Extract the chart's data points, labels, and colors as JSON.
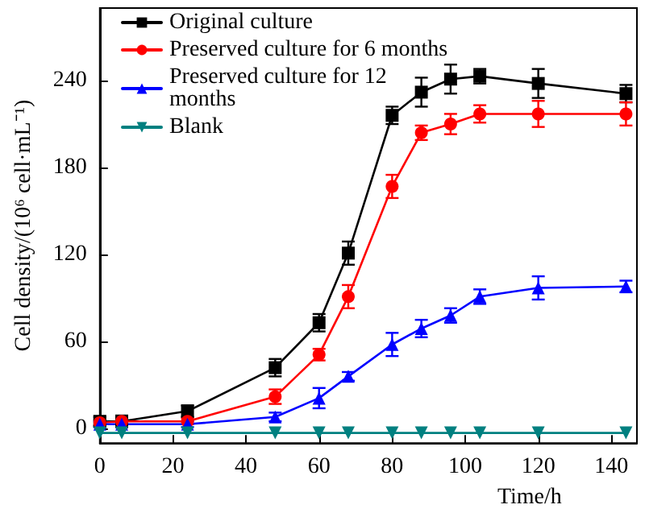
{
  "chart_data": {
    "type": "line",
    "xlabel": "Time/h",
    "ylabel": "Cell density/(10⁶ cell·mL⁻¹)",
    "xlim": [
      0,
      147
    ],
    "xticks": [
      0,
      20,
      40,
      60,
      80,
      100,
      120,
      140
    ],
    "ylim": [
      -10,
      290
    ],
    "yticks": [
      0,
      60,
      120,
      180,
      240
    ],
    "grid": false,
    "legend": "top left",
    "line_style": "solid",
    "series": [
      {
        "name": "Original culture",
        "color": "#000000",
        "marker": "square",
        "x": [
          0,
          6,
          24,
          48,
          60,
          68,
          80,
          88,
          96,
          104,
          120,
          144
        ],
        "values": [
          5,
          5,
          12,
          42,
          73,
          121,
          216,
          232,
          241,
          243,
          238,
          231
        ],
        "errors": [
          3,
          4,
          4,
          6,
          6,
          8,
          6,
          10,
          10,
          5,
          10,
          6
        ]
      },
      {
        "name": "Preserved culture for 6 months",
        "color": "#ff0000",
        "marker": "circle",
        "x": [
          0,
          6,
          24,
          48,
          60,
          68,
          80,
          88,
          96,
          104,
          120,
          144
        ],
        "values": [
          4,
          5,
          5,
          22,
          51,
          91,
          167,
          204,
          210,
          217,
          217,
          217
        ],
        "errors": [
          2,
          3,
          2,
          5,
          4,
          8,
          8,
          5,
          7,
          6,
          9,
          8
        ]
      },
      {
        "name": "Preserved culture for 12 months",
        "color": "#0000ff",
        "marker": "triangle",
        "x": [
          0,
          6,
          24,
          48,
          60,
          68,
          80,
          88,
          96,
          104,
          120,
          144
        ],
        "values": [
          3,
          3,
          3,
          8,
          21,
          36,
          58,
          69,
          78,
          91,
          97,
          98
        ],
        "errors": [
          2,
          2,
          2,
          3,
          7,
          3,
          8,
          6,
          5,
          5,
          8,
          4
        ]
      },
      {
        "name": "Blank",
        "color": "#008080",
        "marker": "triangle-down",
        "x": [
          0,
          6,
          24,
          48,
          60,
          68,
          80,
          88,
          96,
          104,
          120,
          144
        ],
        "values": [
          -3,
          -3,
          -3,
          -3,
          -3,
          -3,
          -3,
          -3,
          -3,
          -3,
          -3,
          -3
        ]
      }
    ]
  }
}
